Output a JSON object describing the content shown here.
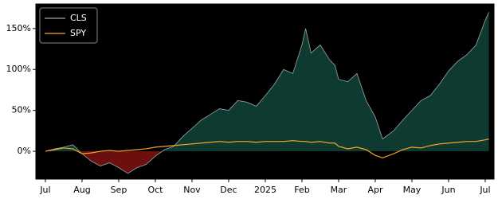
{
  "chart_data": {
    "type": "line",
    "x": [
      0,
      0.25,
      0.5,
      0.75,
      1.0,
      1.25,
      1.5,
      1.75,
      2.0,
      2.25,
      2.5,
      2.75,
      3.0,
      3.25,
      3.5,
      3.75,
      4.0,
      4.25,
      4.5,
      4.75,
      5.0,
      5.25,
      5.5,
      5.75,
      6.0,
      6.25,
      6.5,
      6.75,
      7.0,
      7.1,
      7.25,
      7.5,
      7.75,
      7.9,
      8.0,
      8.25,
      8.5,
      8.75,
      9.0,
      9.2,
      9.5,
      9.75,
      10.0,
      10.25,
      10.5,
      10.75,
      11.0,
      11.25,
      11.5,
      11.75,
      12.0,
      12.1
    ],
    "series": [
      {
        "name": "CLS",
        "color": "#9aa8a4",
        "values": [
          0,
          3,
          5,
          8,
          -3,
          -12,
          -18,
          -14,
          -20,
          -27,
          -20,
          -16,
          -6,
          2,
          6,
          18,
          28,
          38,
          45,
          52,
          50,
          62,
          60,
          55,
          68,
          82,
          100,
          95,
          130,
          150,
          120,
          130,
          112,
          105,
          88,
          85,
          95,
          62,
          42,
          15,
          25,
          38,
          50,
          62,
          68,
          82,
          98,
          110,
          118,
          130,
          160,
          170
        ]
      },
      {
        "name": "SPY",
        "color": "#f5a623",
        "values": [
          0,
          2,
          4,
          3,
          -3,
          -2,
          0,
          1,
          0,
          1,
          2,
          3,
          5,
          6,
          7,
          8,
          9,
          10,
          11,
          12,
          11,
          12,
          12,
          11,
          12,
          12,
          12,
          13,
          12,
          12,
          11,
          12,
          10,
          10,
          6,
          3,
          5,
          2,
          -5,
          -8,
          -3,
          2,
          5,
          4,
          7,
          9,
          10,
          11,
          12,
          12,
          14,
          15
        ]
      }
    ],
    "fill_above": "#0e3a31",
    "fill_below": "#6b0f0f",
    "xlim": [
      -0.26,
      12.24
    ],
    "xticks": [
      {
        "value": 0,
        "label": "Jul"
      },
      {
        "value": 1,
        "label": "Aug"
      },
      {
        "value": 2,
        "label": "Sep"
      },
      {
        "value": 3,
        "label": "Oct"
      },
      {
        "value": 4,
        "label": "Nov"
      },
      {
        "value": 5,
        "label": "Dec"
      },
      {
        "value": 6,
        "label": "2025"
      },
      {
        "value": 7,
        "label": "Feb"
      },
      {
        "value": 8,
        "label": "Mar"
      },
      {
        "value": 9,
        "label": "Apr"
      },
      {
        "value": 10,
        "label": "May"
      },
      {
        "value": 11,
        "label": "Jun"
      },
      {
        "value": 12,
        "label": "Jul"
      }
    ],
    "ylim": [
      -34,
      180
    ],
    "yticks": [
      {
        "value": 0,
        "label": "0%"
      },
      {
        "value": 50,
        "label": "50%"
      },
      {
        "value": 100,
        "label": "100%"
      },
      {
        "value": 150,
        "label": "150%"
      }
    ],
    "legend": "upper left"
  }
}
